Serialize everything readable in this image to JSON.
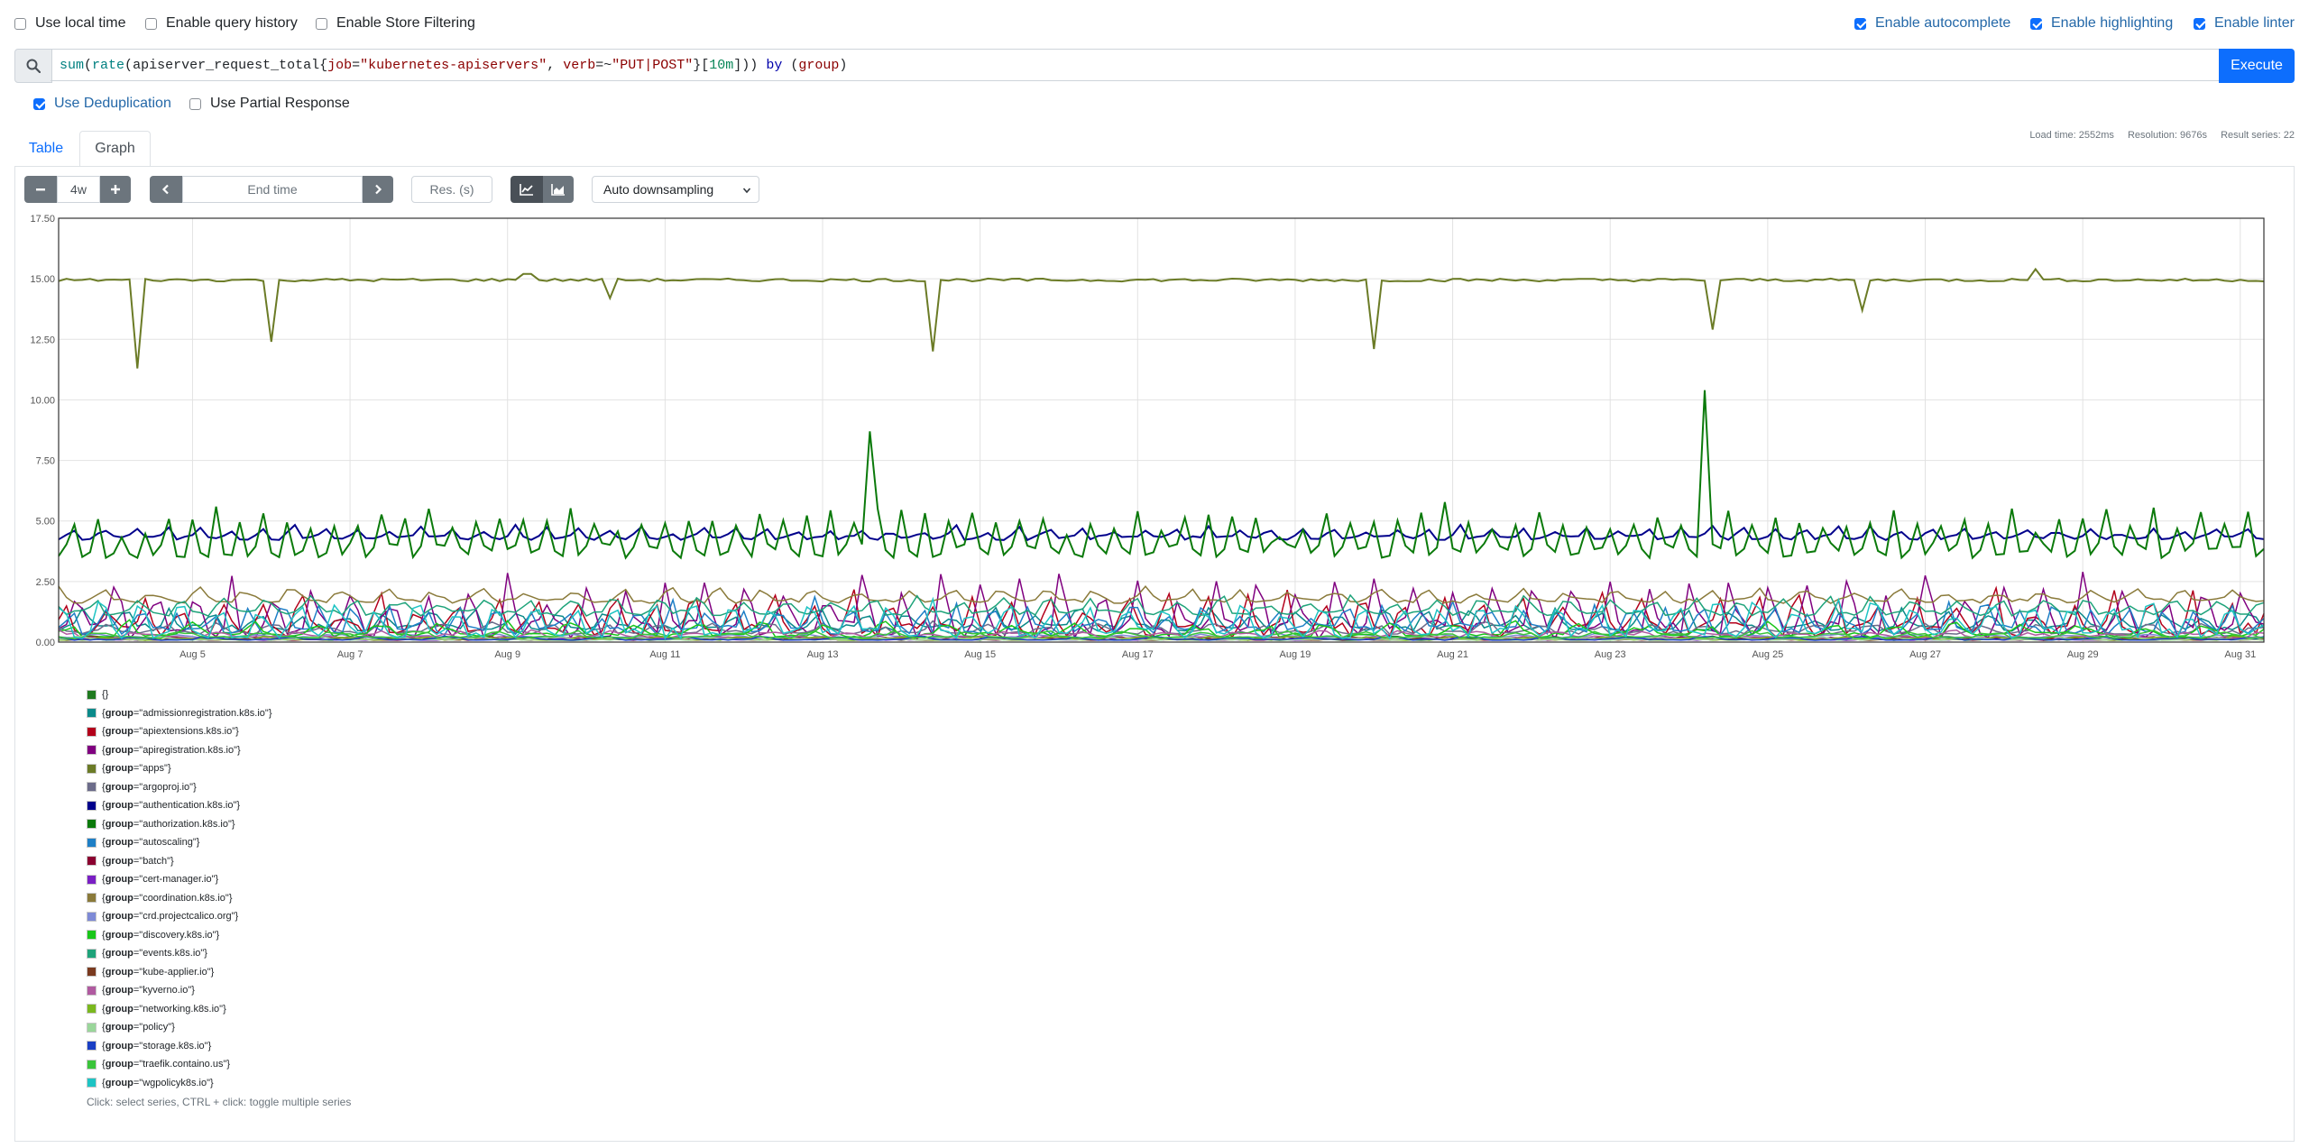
{
  "options": {
    "local_time": {
      "label": "Use local time",
      "checked": false
    },
    "query_history": {
      "label": "Enable query history",
      "checked": false
    },
    "store_filtering": {
      "label": "Enable Store Filtering",
      "checked": false
    },
    "autocomplete": {
      "label": "Enable autocomplete",
      "checked": true
    },
    "highlighting": {
      "label": "Enable highlighting",
      "checked": true
    },
    "linter": {
      "label": "Enable linter",
      "checked": true
    },
    "deduplication": {
      "label": "Use Deduplication",
      "checked": true
    },
    "partial_response": {
      "label": "Use Partial Response",
      "checked": false
    }
  },
  "query": {
    "tokens": [
      {
        "t": "sum",
        "c": "fn"
      },
      {
        "t": "(",
        "c": "p"
      },
      {
        "t": "rate",
        "c": "fn"
      },
      {
        "t": "(",
        "c": "p"
      },
      {
        "t": "apiserver_request_total",
        "c": "metric"
      },
      {
        "t": "{",
        "c": "p"
      },
      {
        "t": "job",
        "c": "label"
      },
      {
        "t": "=",
        "c": "p"
      },
      {
        "t": "\"kubernetes-apiservers\"",
        "c": "str"
      },
      {
        "t": ", ",
        "c": "p"
      },
      {
        "t": "verb",
        "c": "label"
      },
      {
        "t": "=~",
        "c": "p"
      },
      {
        "t": "\"PUT|POST\"",
        "c": "str"
      },
      {
        "t": "}[",
        "c": "p"
      },
      {
        "t": "10m",
        "c": "num"
      },
      {
        "t": "])) ",
        "c": "p"
      },
      {
        "t": "by",
        "c": "kw"
      },
      {
        "t": " (",
        "c": "p"
      },
      {
        "t": "group",
        "c": "label"
      },
      {
        "t": ")",
        "c": "p"
      }
    ],
    "execute_label": "Execute",
    "search_icon": "search-icon"
  },
  "tabs": {
    "table": "Table",
    "graph": "Graph"
  },
  "stats": {
    "load_time": "Load time: 2552ms",
    "resolution": "Resolution: 9676s",
    "result_series": "Result series: 22"
  },
  "controls": {
    "range": "4w",
    "end_time_placeholder": "End time",
    "resolution_placeholder": "Res. (s)",
    "downsampling": "Auto downsampling",
    "minus_icon": "minus-icon",
    "plus_icon": "plus-icon",
    "prev_icon": "chevron-left-icon",
    "next_icon": "chevron-right-icon",
    "line_chart_icon": "line-chart-icon",
    "area_chart_icon": "area-chart-icon"
  },
  "chart_data": {
    "type": "line",
    "ylim": [
      0,
      17.5
    ],
    "y_ticks": [
      "0.00",
      "2.50",
      "5.00",
      "7.50",
      "10.00",
      "12.50",
      "15.00",
      "17.50"
    ],
    "x_ticks": [
      "Aug 5",
      "Aug 7",
      "Aug 9",
      "Aug 11",
      "Aug 13",
      "Aug 15",
      "Aug 17",
      "Aug 19",
      "Aug 21",
      "Aug 23",
      "Aug 25",
      "Aug 27",
      "Aug 29",
      "Aug 31"
    ],
    "x_range_days": [
      3.3,
      31.3
    ],
    "grid": true,
    "series": [
      {
        "name": "{}",
        "color": "#1f7a1f",
        "base": 0.1,
        "amp": 0.1,
        "spikes": []
      },
      {
        "name": "{group=\"admissionregistration.k8s.io\"}",
        "color": "#0a8a8a",
        "base": 0.6,
        "amp": 0.6,
        "period": 0.55
      },
      {
        "name": "{group=\"apiextensions.k8s.io\"}",
        "color": "#b3001b",
        "base": 0.5,
        "amp": 1.2,
        "period": 0.5
      },
      {
        "name": "{group=\"apiregistration.k8s.io\"}",
        "color": "#800080",
        "base": 0.5,
        "amp": 1.6,
        "period": 0.5
      },
      {
        "name": "{group=\"apps\"}",
        "color": "#6b7b26",
        "base": 14.95,
        "amp": 0.05,
        "dips": [
          [
            4.3,
            11.3
          ],
          [
            6.0,
            12.4
          ],
          [
            10.3,
            14.2
          ],
          [
            14.4,
            12.0
          ],
          [
            20.0,
            12.1
          ],
          [
            24.3,
            12.9
          ],
          [
            26.2,
            13.7
          ]
        ],
        "bumps": [
          [
            9.25,
            15.2
          ],
          [
            28.4,
            15.4
          ]
        ]
      },
      {
        "name": "{group=\"argoproj.io\"}",
        "color": "#6c6c8a",
        "base": 0.4,
        "amp": 0.3,
        "period": 0.7
      },
      {
        "name": "{group=\"authentication.k8s.io\"}",
        "color": "#00008b",
        "base": 4.3,
        "amp": 0.35,
        "period": 0.4
      },
      {
        "name": "{group=\"authorization.k8s.io\"}",
        "color": "#0b7a0b",
        "base": 3.8,
        "amp": 1.3,
        "period": 0.3,
        "spikes": [
          [
            13.6,
            8.7
          ],
          [
            24.2,
            10.4
          ]
        ]
      },
      {
        "name": "{group=\"autoscaling\"}",
        "color": "#1e7fc6",
        "base": 0.5,
        "amp": 0.9,
        "period": 0.45
      },
      {
        "name": "{group=\"batch\"}",
        "color": "#8b0030",
        "base": 0.1,
        "amp": 0.1,
        "period": 1.0
      },
      {
        "name": "{group=\"cert-manager.io\"}",
        "color": "#7a1fc4",
        "base": 0.1,
        "amp": 0.1,
        "period": 1.0
      },
      {
        "name": "{group=\"coordination.k8s.io\"}",
        "color": "#8a7a3a",
        "base": 1.7,
        "amp": 0.4,
        "period": 0.6
      },
      {
        "name": "{group=\"crd.projectcalico.org\"}",
        "color": "#7e8ad6",
        "base": 0.2,
        "amp": 0.1,
        "period": 1.0
      },
      {
        "name": "{group=\"discovery.k8s.io\"}",
        "color": "#19c619",
        "base": 0.3,
        "amp": 0.4,
        "period": 0.8
      },
      {
        "name": "{group=\"events.k8s.io\"}",
        "color": "#1ea37a",
        "base": 1.2,
        "amp": 0.5,
        "period": 0.55
      },
      {
        "name": "{group=\"kube-applier.io\"}",
        "color": "#7a3a1f",
        "base": 0.1,
        "amp": 0.1,
        "period": 1.0
      },
      {
        "name": "{group=\"kyverno.io\"}",
        "color": "#b05aa0",
        "base": 0.2,
        "amp": 0.2,
        "period": 1.0
      },
      {
        "name": "{group=\"networking.k8s.io\"}",
        "color": "#7ab81e",
        "base": 0.1,
        "amp": 0.1,
        "period": 1.0
      },
      {
        "name": "{group=\"policy\"}",
        "color": "#9ad69a",
        "base": 0.1,
        "amp": 0.1,
        "period": 1.0
      },
      {
        "name": "{group=\"storage.k8s.io\"}",
        "color": "#1a3fc4",
        "base": 0.1,
        "amp": 0.1,
        "period": 1.0
      },
      {
        "name": "{group=\"traefik.containo.us\"}",
        "color": "#3ac43a",
        "base": 0.2,
        "amp": 0.2,
        "period": 1.0
      },
      {
        "name": "{group=\"wgpolicyk8s.io\"}",
        "color": "#1ec4c4",
        "base": 0.4,
        "amp": 1.0,
        "period": 0.5
      }
    ]
  },
  "legend_hint": "Click: select series, CTRL + click: toggle multiple series"
}
